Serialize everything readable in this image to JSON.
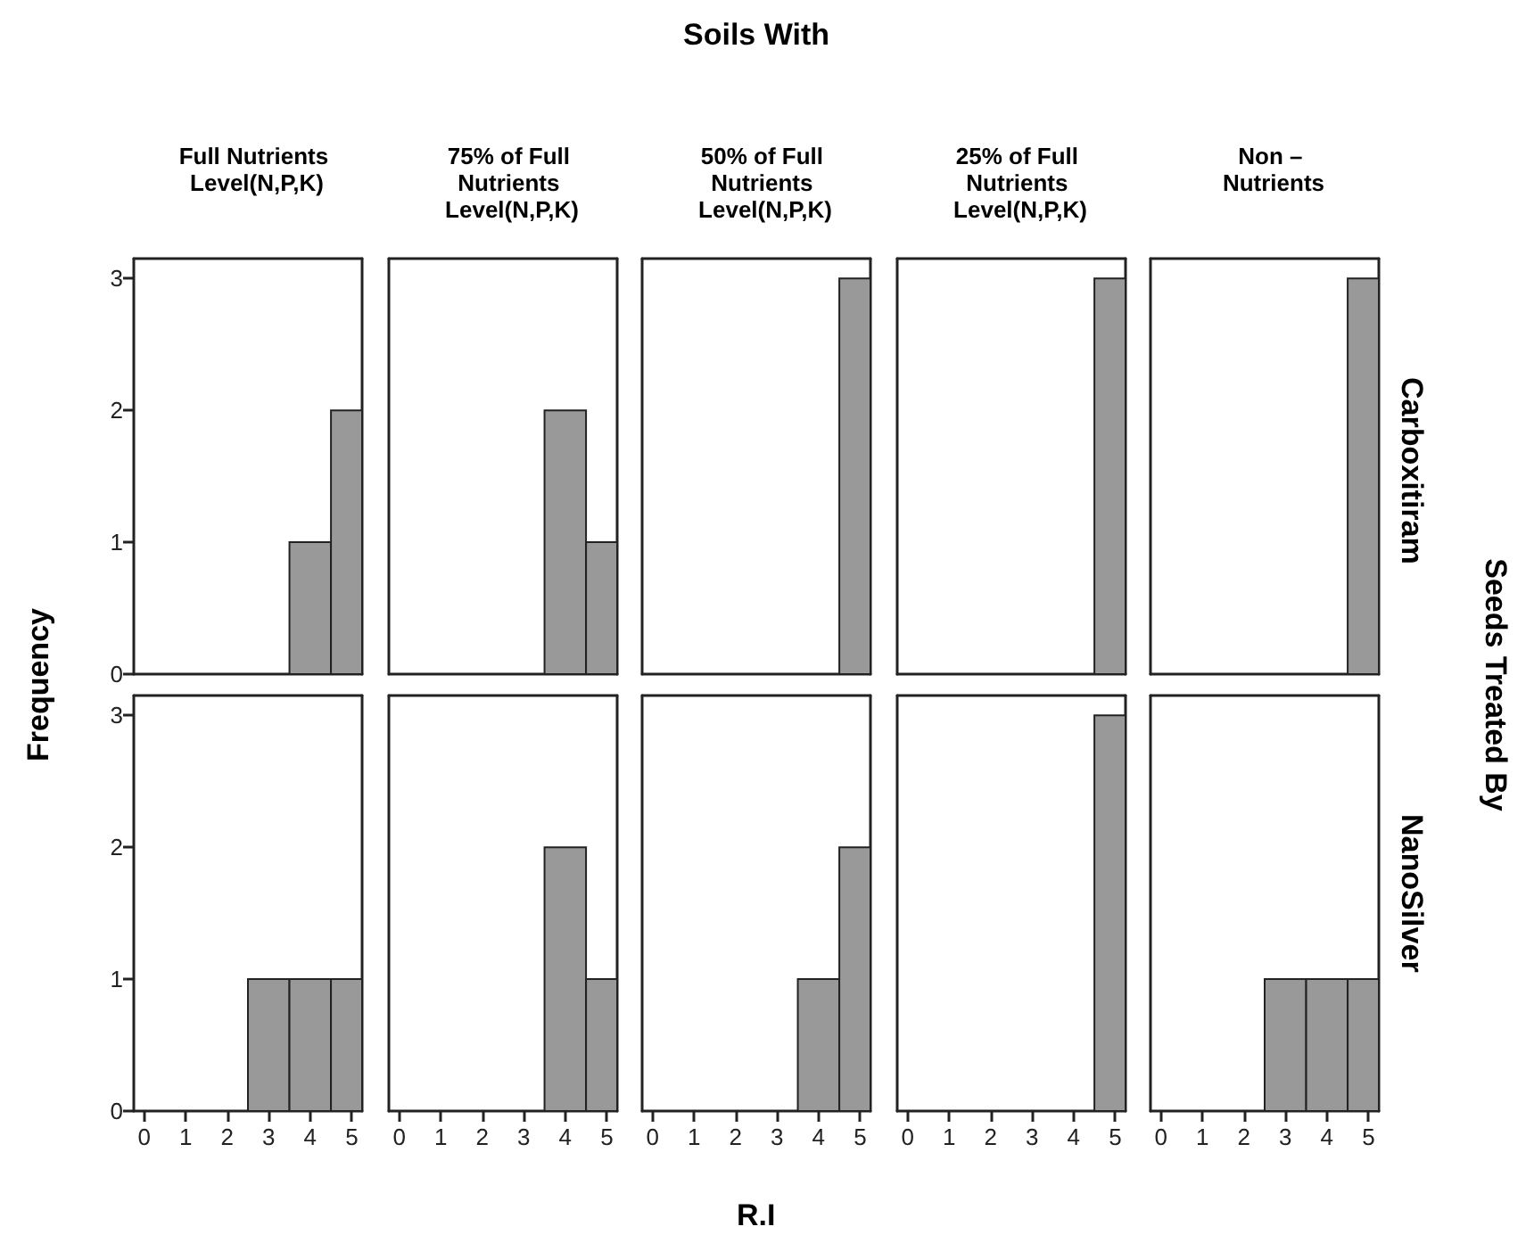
{
  "chart_data": [
    {
      "type": "histogram",
      "title": "Full Nutrients Level(N,P,K)",
      "ylabel": "Frequency",
      "annotations": [
        "Soils With",
        "Seeds Treated By"
      ],
      "bins": [
        3.5,
        4.5,
        5.25
      ],
      "values": [
        1,
        2
      ],
      "color": "#999999",
      "xlim": [
        -0.25,
        5.25
      ],
      "ylim": [
        0,
        3.15
      ],
      "yticks": [
        0,
        1,
        2,
        3
      ],
      "tick_labels": "y",
      "grid": false
    },
    {
      "type": "histogram",
      "title": "75% of Full Nutrients Level(N,P,K)",
      "bins": [
        3.5,
        4.5,
        5.25
      ],
      "values": [
        2,
        1
      ],
      "color": "#999999",
      "xlim": [
        -0.25,
        5.25
      ],
      "ylim": [
        0,
        3.15
      ],
      "tick_labels": false,
      "grid": false
    },
    {
      "type": "histogram",
      "title": "50% of Full Nutrients Level(N,P,K)",
      "bins": [
        4.5,
        5.25
      ],
      "values": [
        3
      ],
      "color": "#999999",
      "xlim": [
        -0.25,
        5.25
      ],
      "ylim": [
        0,
        3.15
      ],
      "tick_labels": false,
      "grid": false
    },
    {
      "type": "histogram",
      "title": "25% of Full Nutrients Level(N,P,K)",
      "bins": [
        4.5,
        5.25
      ],
      "values": [
        3
      ],
      "color": "#999999",
      "xlim": [
        -0.25,
        5.25
      ],
      "ylim": [
        0,
        3.15
      ],
      "tick_labels": false,
      "grid": false
    },
    {
      "type": "histogram",
      "title": "Non – Nutrients",
      "y2label": "Carboxitiram",
      "bins": [
        4.5,
        5.25
      ],
      "values": [
        3
      ],
      "color": "#999999",
      "xlim": [
        -0.25,
        5.25
      ],
      "ylim": [
        0,
        3.15
      ],
      "tick_labels": false,
      "grid": false
    },
    {
      "type": "histogram",
      "bins": [
        2.5,
        3.5,
        4.5,
        5.25
      ],
      "values": [
        1,
        1,
        1
      ],
      "color": "#999999",
      "xlim": [
        -0.25,
        5.25
      ],
      "xticks": [
        0,
        1,
        2,
        3,
        4,
        5
      ],
      "ylim": [
        0,
        3.15
      ],
      "yticks": [
        0,
        1,
        2,
        3
      ],
      "grid": false
    },
    {
      "type": "histogram",
      "bins": [
        3.5,
        4.5,
        5.25
      ],
      "values": [
        2,
        1
      ],
      "color": "#999999",
      "xlim": [
        -0.25,
        5.25
      ],
      "xticks": [
        0,
        1,
        2,
        3,
        4,
        5
      ],
      "ylim": [
        0,
        3.15
      ],
      "tick_labels": "x",
      "grid": false
    },
    {
      "type": "histogram",
      "xlabel": "R.I",
      "bins": [
        3.5,
        4.5,
        5.25
      ],
      "values": [
        1,
        2
      ],
      "color": "#999999",
      "xlim": [
        -0.25,
        5.25
      ],
      "xticks": [
        0,
        1,
        2,
        3,
        4,
        5
      ],
      "ylim": [
        0,
        3.15
      ],
      "tick_labels": "x",
      "grid": false
    },
    {
      "type": "histogram",
      "bins": [
        4.5,
        5.25
      ],
      "values": [
        3
      ],
      "color": "#999999",
      "xlim": [
        -0.25,
        5.25
      ],
      "xticks": [
        0,
        1,
        2,
        3,
        4,
        5
      ],
      "ylim": [
        0,
        3.15
      ],
      "tick_labels": "x",
      "grid": false
    },
    {
      "type": "histogram",
      "y2label": "NanoSilver",
      "bins": [
        2.5,
        3.5,
        4.5,
        5.25
      ],
      "values": [
        1,
        1,
        1
      ],
      "color": "#999999",
      "xlim": [
        -0.25,
        5.25
      ],
      "xticks": [
        0,
        1,
        2,
        3,
        4,
        5
      ],
      "ylim": [
        0,
        3.15
      ],
      "tick_labels": "x",
      "grid": false
    }
  ]
}
